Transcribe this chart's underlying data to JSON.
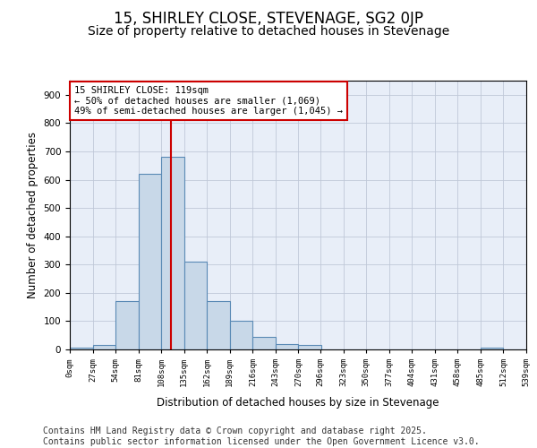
{
  "title_line1": "15, SHIRLEY CLOSE, STEVENAGE, SG2 0JP",
  "title_line2": "Size of property relative to detached houses in Stevenage",
  "xlabel": "Distribution of detached houses by size in Stevenage",
  "ylabel": "Number of detached properties",
  "bin_edges": [
    0,
    27,
    54,
    81,
    108,
    135,
    162,
    189,
    216,
    243,
    270,
    296,
    323,
    350,
    377,
    404,
    431,
    458,
    485,
    512,
    539
  ],
  "bar_heights": [
    5,
    15,
    170,
    620,
    680,
    310,
    170,
    100,
    45,
    20,
    15,
    0,
    0,
    0,
    0,
    0,
    0,
    0,
    5,
    0
  ],
  "bar_color": "#c8d8e8",
  "bar_edge_color": "#5a8ab5",
  "bar_linewidth": 0.8,
  "vline_x": 119,
  "vline_color": "#cc0000",
  "vline_linewidth": 1.5,
  "annotation_text": "15 SHIRLEY CLOSE: 119sqm\n← 50% of detached houses are smaller (1,069)\n49% of semi-detached houses are larger (1,045) →",
  "annotation_box_color": "#cc0000",
  "ylim": [
    0,
    950
  ],
  "yticks": [
    0,
    100,
    200,
    300,
    400,
    500,
    600,
    700,
    800,
    900
  ],
  "grid_color": "#c0c8d8",
  "background_color": "#e8eef8",
  "footer_line1": "Contains HM Land Registry data © Crown copyright and database right 2025.",
  "footer_line2": "Contains public sector information licensed under the Open Government Licence v3.0.",
  "footer_fontsize": 7,
  "title_fontsize1": 12,
  "title_fontsize2": 10,
  "annot_fontsize": 7.5
}
